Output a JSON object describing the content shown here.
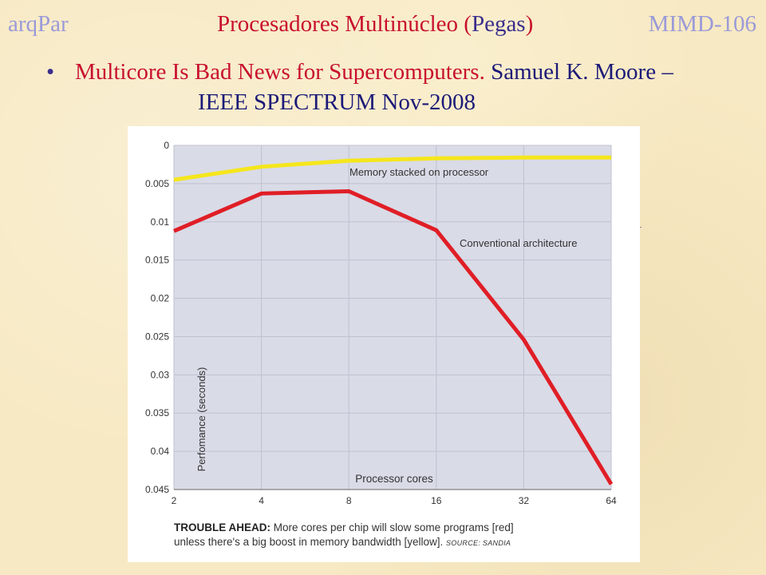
{
  "header": {
    "left": "arqPar",
    "center_main": "Procesadores Multinúcleo",
    "center_paren_open": "(",
    "center_pegas": "Pegas",
    "center_paren_close": ")",
    "right": "MIMD-106"
  },
  "bullet": {
    "dot": "•",
    "red_text": "Multicore Is Bad News for Supercomputers.",
    "blue_text": "Samuel K. Moore –",
    "line2": "IEEE SPECTRUM Nov-2008"
  },
  "caption": {
    "bold": "TROUBLE AHEAD:",
    "line1": "More cores per chip will slow some programs [red]",
    "line2": "unless there's a big boost in memory bandwidth [yellow].",
    "source": "SOURCE: SANDIA"
  },
  "chart_data": {
    "type": "line",
    "xlabel": "Processor cores",
    "ylabel": "Perfomance (seconds)",
    "x": [
      2,
      4,
      8,
      16,
      32,
      64
    ],
    "x_scale": "log2",
    "y_inverted": true,
    "ylim": [
      0,
      0.045
    ],
    "yticks": [
      0,
      0.005,
      0.01,
      0.015,
      0.02,
      0.025,
      0.03,
      0.035,
      0.04,
      0.045
    ],
    "ytick_labels": [
      "0",
      "0.005",
      "0.01",
      "0.015",
      "0.02",
      "0.025",
      "0.03",
      "0.035",
      "0.04",
      "0.045"
    ],
    "xtick_labels": [
      "2",
      "4",
      "8",
      "16",
      "32",
      "64"
    ],
    "grid": true,
    "series": [
      {
        "name": "Memory stacked on processor",
        "color": "#f5e61c",
        "values": [
          0.0045,
          0.0028,
          0.002,
          0.0017,
          0.0016,
          0.0016
        ]
      },
      {
        "name": "Conventional architecture",
        "color": "#e01e26",
        "values": [
          0.0112,
          0.0063,
          0.006,
          0.0111,
          0.0254,
          0.0443
        ]
      }
    ]
  },
  "colors": {
    "plot_bg": "#d9dbe7",
    "grid": "#bfc2cf",
    "slide_bg": "#f7e9c3"
  }
}
